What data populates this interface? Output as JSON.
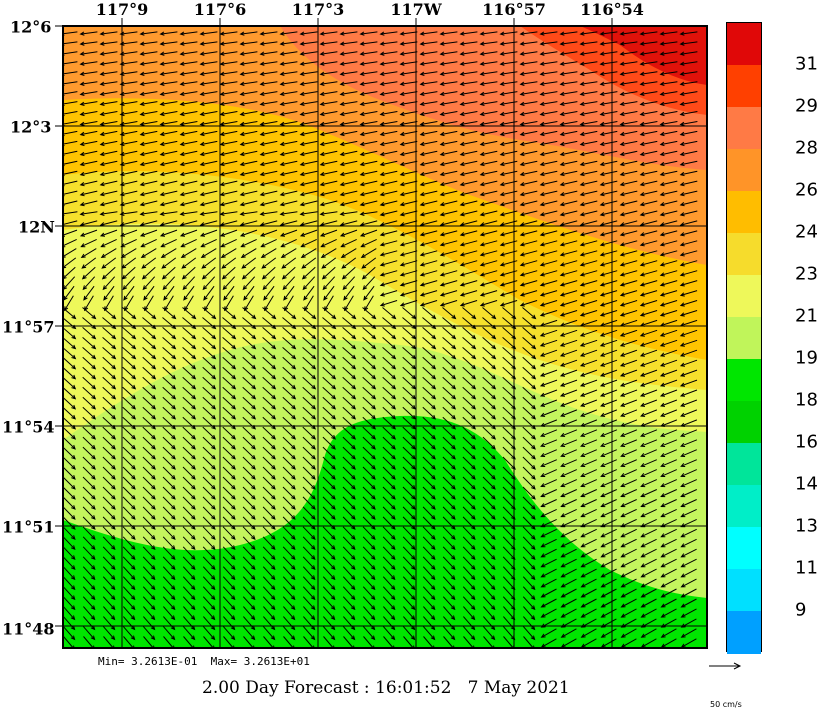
{
  "map": {
    "longitude_labels": [
      "117°9",
      "117°6",
      "117°3",
      "117W",
      "116°57",
      "116°54"
    ],
    "latitude_labels": [
      "12°6",
      "12°3",
      "12N",
      "11°57",
      "11°54",
      "11°51",
      "11°48"
    ],
    "wind_direction_note_colors": "#000000",
    "contour_fill_colors": {
      "31": "#e0120a",
      "29": "#ff4a18",
      "28": "#ff7a45",
      "26": "#ff9a2e",
      "24": "#ffc400",
      "23": "#f6e02c",
      "21": "#eef85a",
      "19": "#c4f55e",
      "18": "#00e600"
    }
  },
  "colorbar": {
    "labels": [
      "31",
      "29",
      "28",
      "26",
      "24",
      "23",
      "21",
      "19",
      "18",
      "16",
      "14",
      "13",
      "11",
      "9"
    ],
    "colors": [
      "#e00808",
      "#ff4000",
      "#ff7a45",
      "#ff9428",
      "#ffbd00",
      "#f6dc2c",
      "#eef85a",
      "#c0f55a",
      "#00e600",
      "#00d200",
      "#00e59a",
      "#00eec8",
      "#00ffff",
      "#00e0ff",
      "#00a0ff"
    ]
  },
  "footer": {
    "min_max": "Min= 3.2613E-01  Max= 3.2613E+01",
    "forecast": "2.00 Day Forecast : 16:01:52   7 May 2021",
    "scale_label": "50 cm/s"
  }
}
